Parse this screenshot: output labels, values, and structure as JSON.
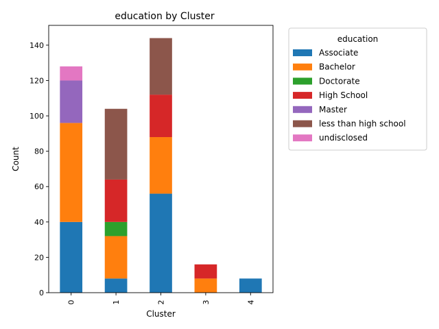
{
  "chart_data": {
    "type": "bar",
    "stacked": true,
    "title": "education by Cluster",
    "xlabel": "Cluster",
    "ylabel": "Count",
    "categories": [
      "0",
      "1",
      "2",
      "3",
      "4"
    ],
    "ylim": [
      0,
      151.2
    ],
    "yticks": [
      0,
      20,
      40,
      60,
      80,
      100,
      120,
      140
    ],
    "legend_title": "education",
    "legend_position": "outside-right-top",
    "grid": false,
    "series": [
      {
        "name": "Associate",
        "color": "#1f77b4",
        "values": [
          40,
          8,
          56,
          0,
          8
        ]
      },
      {
        "name": "Bachelor",
        "color": "#ff7f0e",
        "values": [
          56,
          24,
          32,
          8,
          0
        ]
      },
      {
        "name": "Doctorate",
        "color": "#2ca02c",
        "values": [
          0,
          8,
          0,
          0,
          0
        ]
      },
      {
        "name": "High School",
        "color": "#d62728",
        "values": [
          0,
          24,
          24,
          8,
          0
        ]
      },
      {
        "name": "Master",
        "color": "#9467bd",
        "values": [
          24,
          0,
          0,
          0,
          0
        ]
      },
      {
        "name": "less than high school",
        "color": "#8c564b",
        "values": [
          0,
          40,
          32,
          0,
          0
        ]
      },
      {
        "name": "undisclosed",
        "color": "#e377c2",
        "values": [
          8,
          0,
          0,
          0,
          0
        ]
      }
    ]
  }
}
